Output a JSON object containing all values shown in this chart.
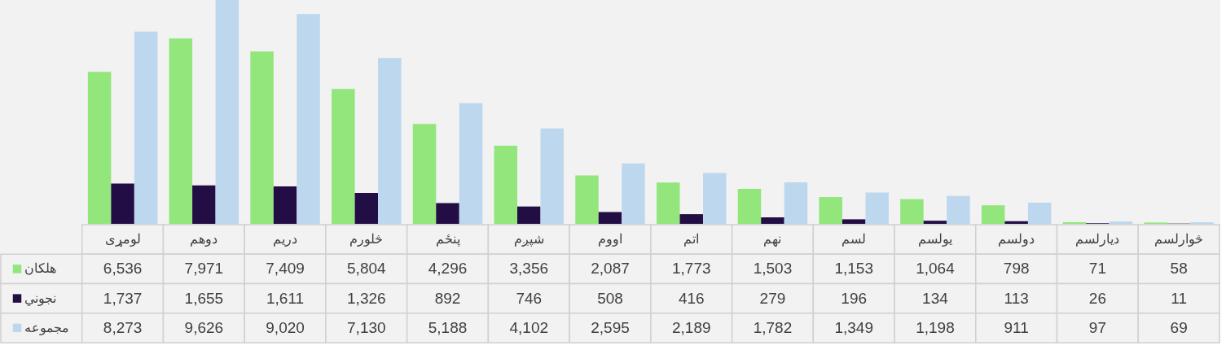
{
  "chart_data": {
    "type": "bar",
    "categories": [
      "لومړی",
      "دوهم",
      "دریم",
      "څلورم",
      "پنځم",
      "شپږم",
      "اووم",
      "اتم",
      "نهم",
      "لسم",
      "یولسم",
      "دولسم",
      "دیارلسم",
      "څوارلسم"
    ],
    "series": [
      {
        "name": "هلکان",
        "color": "#92e67c",
        "values": [
          6536,
          7971,
          7409,
          5804,
          4296,
          3356,
          2087,
          1773,
          1503,
          1153,
          1064,
          798,
          71,
          58
        ],
        "value_labels": [
          "6,536",
          "7,971",
          "7,409",
          "5,804",
          "4,296",
          "3,356",
          "2,087",
          "1,773",
          "1,503",
          "1,153",
          "1,064",
          "798",
          "71",
          "58"
        ]
      },
      {
        "name": "نجوني",
        "color": "#230d45",
        "values": [
          1737,
          1655,
          1611,
          1326,
          892,
          746,
          508,
          416,
          279,
          196,
          134,
          113,
          26,
          11
        ],
        "value_labels": [
          "1,737",
          "1,655",
          "1,611",
          "1,326",
          "892",
          "746",
          "508",
          "416",
          "279",
          "196",
          "134",
          "113",
          "26",
          "11"
        ]
      },
      {
        "name": "مجموعه",
        "color": "#bdd7ee",
        "values": [
          8273,
          9626,
          9020,
          7130,
          5188,
          4102,
          2595,
          2189,
          1782,
          1349,
          1198,
          911,
          97,
          69
        ],
        "value_labels": [
          "8,273",
          "9,626",
          "9,020",
          "7,130",
          "5,188",
          "4,102",
          "2,595",
          "2,189",
          "1,782",
          "1,349",
          "1,198",
          "911",
          "97",
          "69"
        ]
      }
    ],
    "legend": "bottom left"
  }
}
